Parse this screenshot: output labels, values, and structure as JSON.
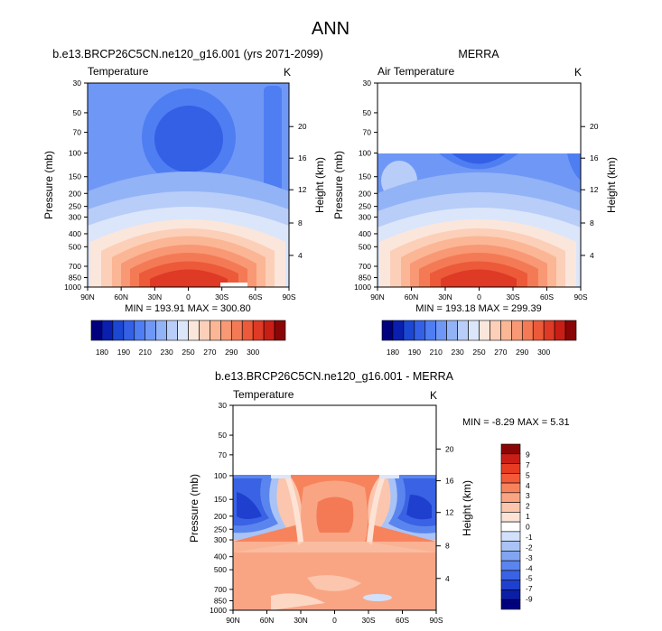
{
  "page": {
    "title": "ANN",
    "colorbar_top_labels": [
      "180",
      "190",
      "210",
      "230",
      "250",
      "270",
      "290",
      "300"
    ],
    "colorbar_top_colors": [
      "#00007f",
      "#0a1fb0",
      "#1c47d2",
      "#3460e6",
      "#4f7ef2",
      "#6f98f6",
      "#93b3f7",
      "#b8cdf8",
      "#dbe6fa",
      "#fbe6dc",
      "#fccfb8",
      "#fbb695",
      "#f89874",
      "#f47a56",
      "#ec5a3a",
      "#de3a25",
      "#c81e16",
      "#8a0606"
    ],
    "colorbar_diff_labels": [
      "9",
      "7",
      "5",
      "4",
      "3",
      "2",
      "1",
      "0",
      "-1",
      "-2",
      "-3",
      "-4",
      "-5",
      "-7",
      "-9"
    ],
    "colorbar_diff_colors": [
      "#8a0606",
      "#c81e16",
      "#e63c22",
      "#f45a38",
      "#f7835c",
      "#f9a584",
      "#fbc6ad",
      "#fde3d5",
      "#ffffff",
      "#d2e0fb",
      "#a9c3f6",
      "#82a5f2",
      "#5b85ee",
      "#3a62e4",
      "#1f3fce",
      "#0b1ea6",
      "#00007f"
    ]
  },
  "chart_data": [
    {
      "type": "heatmap",
      "title": "b.e13.BRCP26C5CN.ne120_g16.001 (yrs 2071-2099)",
      "left_label": "Temperature",
      "right_label": "K",
      "ylabel": "Pressure (mb)",
      "y2label": "Height (km)",
      "xticks": [
        "90N",
        "60N",
        "30N",
        "0",
        "30S",
        "60S",
        "90S"
      ],
      "yticks": [
        "30",
        "50",
        "70",
        "100",
        "150",
        "200",
        "250",
        "300",
        "400",
        "500",
        "700",
        "850",
        "1000"
      ],
      "y2ticks": [
        "20",
        "16",
        "12",
        "8",
        "4"
      ],
      "min": 193.91,
      "max": 300.8,
      "stats": "MIN = 193.91   MAX = 300.80",
      "units": "K"
    },
    {
      "type": "heatmap",
      "title": "MERRA",
      "left_label": "Air Temperature",
      "right_label": "K",
      "ylabel": "Pressure (mb)",
      "y2label": "Height (km)",
      "xticks": [
        "90N",
        "60N",
        "30N",
        "0",
        "30S",
        "60S",
        "90S"
      ],
      "yticks": [
        "30",
        "50",
        "70",
        "100",
        "150",
        "200",
        "250",
        "300",
        "400",
        "500",
        "700",
        "850",
        "1000"
      ],
      "y2ticks": [
        "20",
        "16",
        "12",
        "8",
        "4"
      ],
      "min": 193.18,
      "max": 299.39,
      "stats": "MIN = 193.18   MAX = 299.39",
      "units": "K",
      "data_top_mb": 100
    },
    {
      "type": "heatmap",
      "title": "b.e13.BRCP26C5CN.ne120_g16.001 - MERRA",
      "left_label": "Temperature",
      "right_label": "K",
      "ylabel": "Pressure (mb)",
      "y2label": "Height (km)",
      "xticks": [
        "90N",
        "60N",
        "30N",
        "0",
        "30S",
        "60S",
        "90S"
      ],
      "yticks": [
        "30",
        "50",
        "70",
        "100",
        "150",
        "200",
        "250",
        "300",
        "400",
        "500",
        "700",
        "850",
        "1000"
      ],
      "y2ticks": [
        "20",
        "16",
        "12",
        "8",
        "4"
      ],
      "min": -8.29,
      "max": 5.31,
      "stats": "MIN = -8.29   MAX =  5.31",
      "units": "K",
      "data_top_mb": 100
    }
  ]
}
